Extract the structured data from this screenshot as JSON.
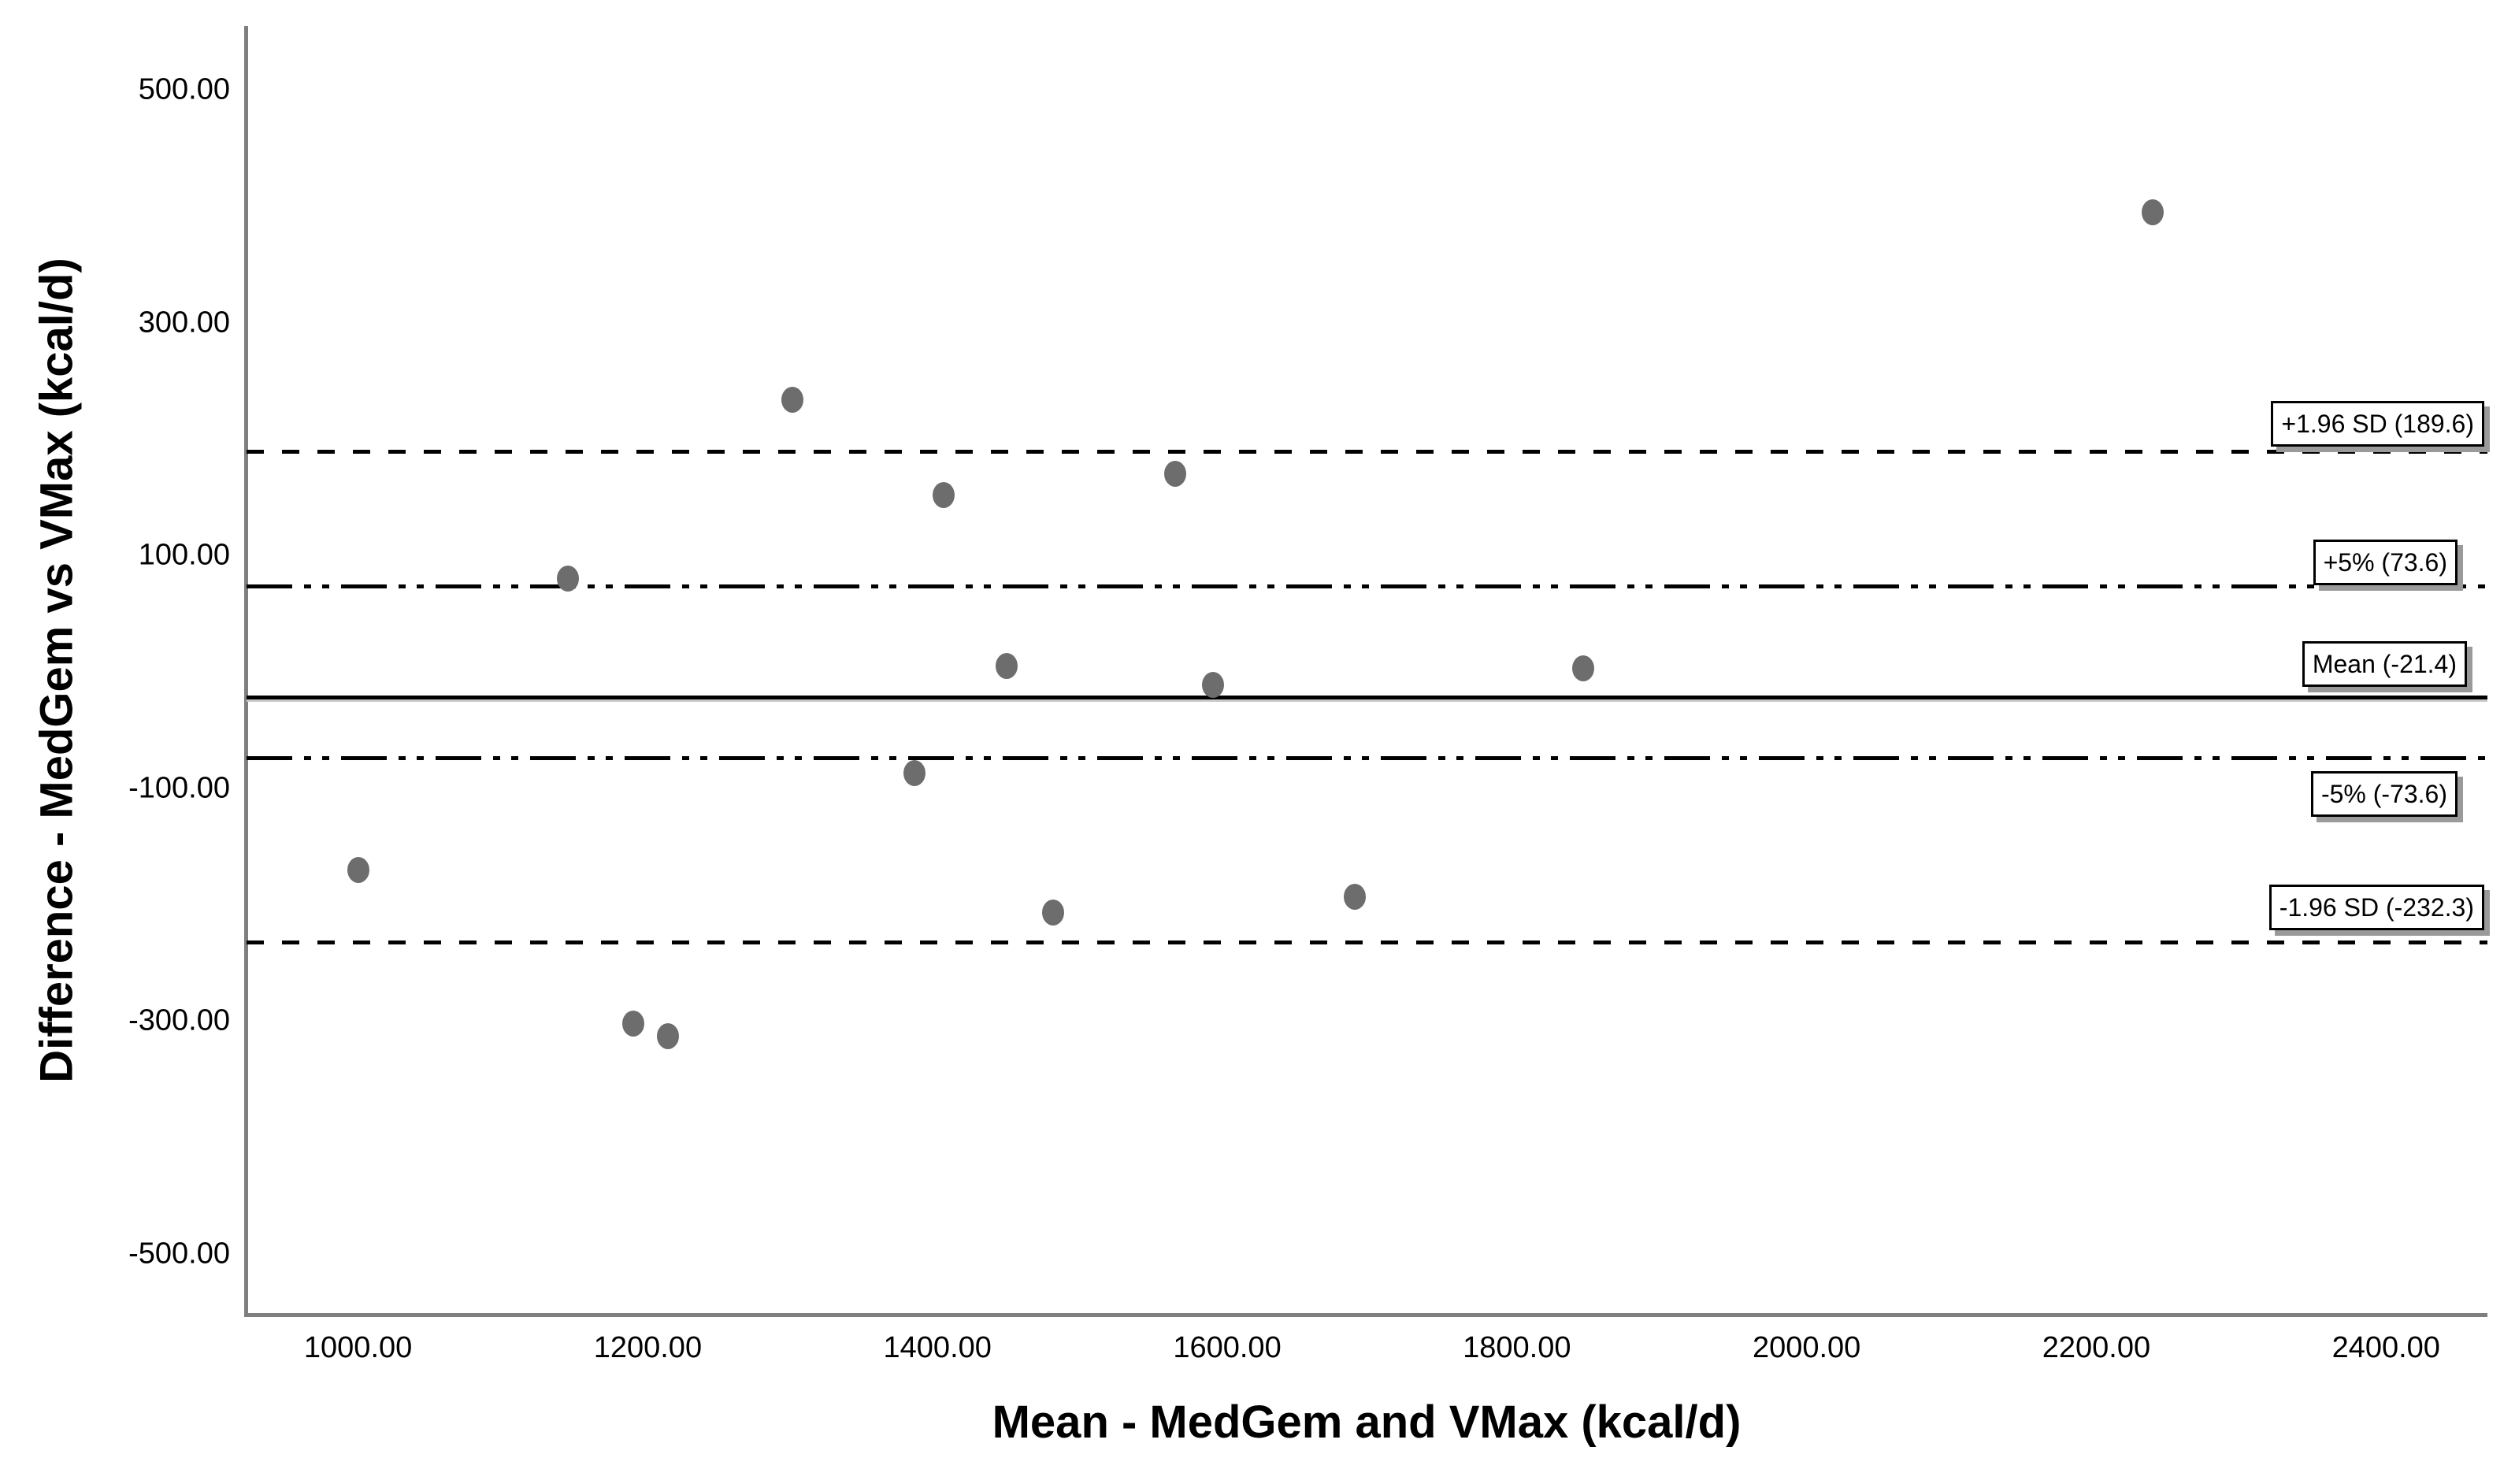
{
  "chart_data": {
    "type": "scatter",
    "title": "",
    "xlabel": "Mean - MedGem and VMax (kcal/d)",
    "ylabel": "Difference - MedGem vs VMax (kcal/d)",
    "xlim": [
      923,
      2470
    ],
    "ylim": [
      -553,
      555
    ],
    "grid": false,
    "legend": "none",
    "axis_color": "#7f7f7f",
    "marker_color": "#6d6d6d",
    "x_ticks": [
      {
        "value": 1000,
        "label": "1000.00"
      },
      {
        "value": 1200,
        "label": "1200.00"
      },
      {
        "value": 1400,
        "label": "1400.00"
      },
      {
        "value": 1600,
        "label": "1600.00"
      },
      {
        "value": 1800,
        "label": "1800.00"
      },
      {
        "value": 2000,
        "label": "2000.00"
      },
      {
        "value": 2200,
        "label": "2200.00"
      },
      {
        "value": 2400,
        "label": "2400.00"
      }
    ],
    "y_ticks": [
      {
        "value": 500,
        "label": "500.00"
      },
      {
        "value": 300,
        "label": "300.00"
      },
      {
        "value": 100,
        "label": "100.00"
      },
      {
        "value": -100,
        "label": "-100.00"
      },
      {
        "value": -300,
        "label": "-300.00"
      },
      {
        "value": -500,
        "label": "-500.00"
      }
    ],
    "reference_lines": [
      {
        "name": "upper-loa",
        "value": 189.6,
        "style": "dashed",
        "label": "+1.96 SD (189.6)",
        "label_position": "above"
      },
      {
        "name": "plus-5pct",
        "value": 73.6,
        "style": "dashdotdot",
        "label": "+5% (73.6)",
        "label_position": "above"
      },
      {
        "name": "mean",
        "value": -21.4,
        "style": "solid",
        "label": "Mean (-21.4)",
        "label_position": "above"
      },
      {
        "name": "minus-5pct",
        "value": -73.6,
        "style": "dashdotdot",
        "label": "-5% (-73.6)",
        "label_position": "below"
      },
      {
        "name": "lower-loa",
        "value": -232.3,
        "style": "dashed",
        "label": "-1.96 SD (-232.3)",
        "label_position": "above"
      }
    ],
    "points": [
      {
        "x": 1000,
        "y": -170
      },
      {
        "x": 1145,
        "y": 80
      },
      {
        "x": 1190,
        "y": -302
      },
      {
        "x": 1214,
        "y": -313
      },
      {
        "x": 1300,
        "y": 234
      },
      {
        "x": 1384,
        "y": -87
      },
      {
        "x": 1404,
        "y": 152
      },
      {
        "x": 1448,
        "y": 5
      },
      {
        "x": 1480,
        "y": -207
      },
      {
        "x": 1564,
        "y": 170
      },
      {
        "x": 1590,
        "y": -11
      },
      {
        "x": 1688,
        "y": -193
      },
      {
        "x": 1846,
        "y": 3
      },
      {
        "x": 2239,
        "y": 395
      }
    ]
  }
}
